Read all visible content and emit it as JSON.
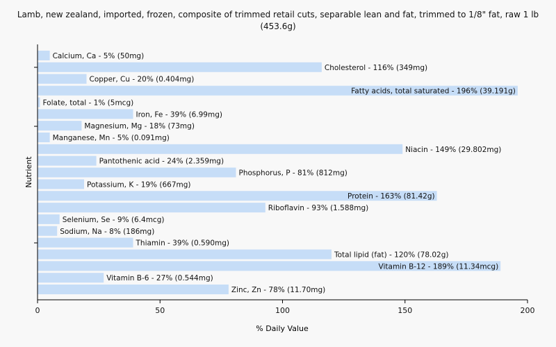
{
  "chart_data": {
    "type": "bar",
    "orientation": "horizontal",
    "title": "Lamb, new zealand, imported, frozen, composite of trimmed retail cuts, separable lean and fat, trimmed to 1/8\" fat, raw 1 lb (453.6g)",
    "xlabel": "% Daily Value",
    "ylabel": "Nutrient",
    "xlim": [
      0,
      200
    ],
    "xticks": [
      0,
      50,
      100,
      150,
      200
    ],
    "bar_color": "#c6ddf7",
    "grid": false,
    "categories": [
      "Calcium, Ca",
      "Cholesterol",
      "Copper, Cu",
      "Fatty acids, total saturated",
      "Folate, total",
      "Iron, Fe",
      "Magnesium, Mg",
      "Manganese, Mn",
      "Niacin",
      "Pantothenic acid",
      "Phosphorus, P",
      "Potassium, K",
      "Protein",
      "Riboflavin",
      "Selenium, Se",
      "Sodium, Na",
      "Thiamin",
      "Total lipid (fat)",
      "Vitamin B-12",
      "Vitamin B-6",
      "Zinc, Zn"
    ],
    "values": [
      5,
      116,
      20,
      196,
      1,
      39,
      18,
      5,
      149,
      24,
      81,
      19,
      163,
      93,
      9,
      8,
      39,
      120,
      189,
      27,
      78
    ],
    "labels": [
      "Calcium, Ca - 5% (50mg)",
      "Cholesterol - 116% (349mg)",
      "Copper, Cu - 20% (0.404mg)",
      "Fatty acids, total saturated - 196% (39.191g)",
      "Folate, total - 1% (5mcg)",
      "Iron, Fe - 39% (6.99mg)",
      "Magnesium, Mg - 18% (73mg)",
      "Manganese, Mn - 5% (0.091mg)",
      "Niacin - 149% (29.802mg)",
      "Pantothenic acid - 24% (2.359mg)",
      "Phosphorus, P - 81% (812mg)",
      "Potassium, K - 19% (667mg)",
      "Protein - 163% (81.42g)",
      "Riboflavin - 93% (1.588mg)",
      "Selenium, Se - 9% (6.4mcg)",
      "Sodium, Na - 8% (186mg)",
      "Thiamin - 39% (0.590mg)",
      "Total lipid (fat) - 120% (78.02g)",
      "Vitamin B-12 - 189% (11.34mcg)",
      "Vitamin B-6 - 27% (0.544mg)",
      "Zinc, Zn - 78% (11.70mg)"
    ]
  }
}
